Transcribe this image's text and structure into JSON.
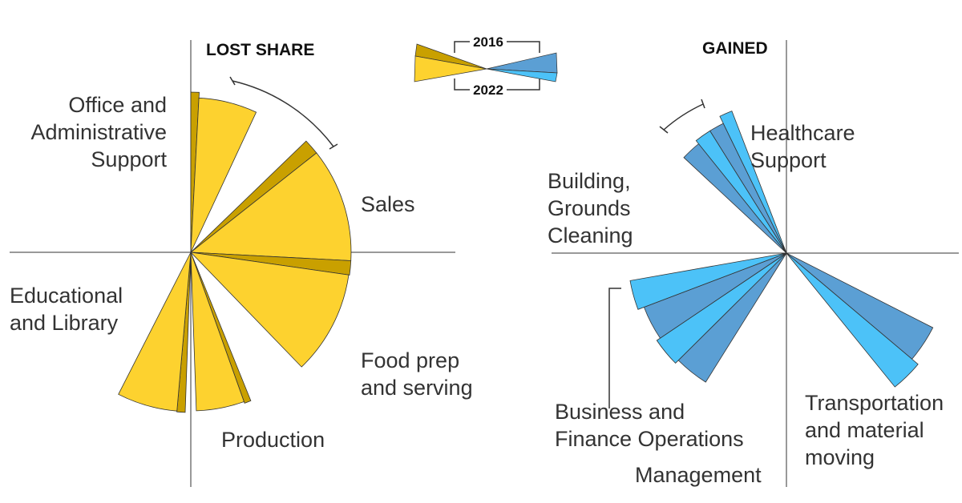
{
  "chart_data": [
    {
      "type": "radial",
      "title": "LOST SHARE",
      "years": [
        "2016",
        "2022"
      ],
      "colors": {
        "2016": "#c9a000",
        "2022": "#fdd22f"
      },
      "series": [
        {
          "name": "Office and Administrative Support",
          "label_lines": [
            "Office and",
            "Administrative",
            "Support"
          ],
          "angle_start": 0,
          "angle_end": 25,
          "value_2016": 200,
          "value_2022": 193
        },
        {
          "name": "Sales",
          "label_lines": [
            "Sales"
          ],
          "angle_start": 46,
          "angle_end": 93,
          "value_2016": 200,
          "value_2022": 200
        },
        {
          "name": "Food prep and serving",
          "label_lines": [
            "Food prep",
            "and serving"
          ],
          "angle_start": 93,
          "angle_end": 136,
          "value_2016": 200,
          "value_2022": 199
        },
        {
          "name": "Production",
          "label_lines": [
            "Production"
          ],
          "angle_start": 158,
          "angle_end": 178,
          "value_2016": 200,
          "value_2022": 198
        },
        {
          "name": "Educational and Library",
          "label_lines": [
            "Educational",
            "and Library"
          ],
          "angle_start": 182,
          "angle_end": 207,
          "value_2016": 200,
          "value_2022": 199
        }
      ]
    },
    {
      "type": "radial",
      "title": "GAINED",
      "years": [
        "2016",
        "2022"
      ],
      "colors": {
        "2016": "#5b9fd4",
        "2022": "#4cc2f8"
      },
      "series": [
        {
          "name": "Healthcare Support",
          "label_lines": [
            "Healthcare",
            "Support"
          ],
          "angle_start": 328,
          "angle_end": 339,
          "value_2016": 180,
          "value_2022": 190
        },
        {
          "name": "Building, Grounds Cleaning",
          "label_lines": [
            "Building,",
            "Grounds",
            "Cleaning"
          ],
          "angle_start": 313,
          "angle_end": 328,
          "value_2016": 175,
          "value_2022": 180
        },
        {
          "name": "Transportation and material moving",
          "label_lines": [
            "Transportation",
            "and material",
            "moving"
          ],
          "angle_start": 117,
          "angle_end": 141,
          "value_2016": 205,
          "value_2022": 215
        },
        {
          "name": "Management",
          "label_lines": [
            "Management"
          ],
          "angle_start": 212,
          "angle_end": 236,
          "value_2016": 190,
          "value_2022": 195
        },
        {
          "name": "Business and Finance Operations",
          "label_lines": [
            "Business and",
            "Finance Operations"
          ],
          "angle_start": 236,
          "angle_end": 260,
          "value_2016": 190,
          "value_2022": 198
        }
      ]
    }
  ],
  "legend": {
    "year_top": "2016",
    "year_bottom": "2022"
  }
}
